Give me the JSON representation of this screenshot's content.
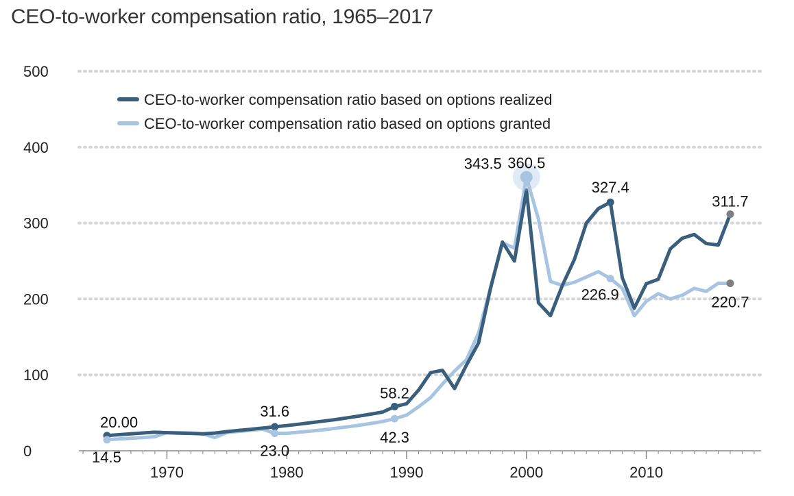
{
  "title": "CEO-to-worker compensation ratio, 1965–2017",
  "chart_data": {
    "type": "line",
    "xlim": [
      1962,
      2020
    ],
    "ylim": [
      0,
      500
    ],
    "yticks": [
      0,
      100,
      200,
      300,
      400,
      500
    ],
    "xticks": [
      1970,
      1980,
      1990,
      2000,
      2010
    ],
    "grid": "horizontal dotted",
    "legend_placement": "top-left",
    "series": [
      {
        "name": "CEO-to-worker compensation ratio based on options realized",
        "color": "#3a5f7d",
        "points": [
          [
            1965,
            20.0
          ],
          [
            1966,
            21.2
          ],
          [
            1967,
            22.4
          ],
          [
            1968,
            23.5
          ],
          [
            1969,
            24.5
          ],
          [
            1970,
            23.8
          ],
          [
            1971,
            23.3
          ],
          [
            1972,
            22.9
          ],
          [
            1973,
            22.3
          ],
          [
            1974,
            23.4
          ],
          [
            1975,
            25.3
          ],
          [
            1976,
            26.8
          ],
          [
            1977,
            28.3
          ],
          [
            1978,
            30.0
          ],
          [
            1979,
            31.6
          ],
          [
            1980,
            33.2
          ],
          [
            1981,
            35.0
          ],
          [
            1982,
            37.0
          ],
          [
            1983,
            39.0
          ],
          [
            1984,
            41.0
          ],
          [
            1985,
            43.3
          ],
          [
            1986,
            45.7
          ],
          [
            1987,
            48.3
          ],
          [
            1988,
            51.0
          ],
          [
            1989,
            58.2
          ],
          [
            1990,
            62.0
          ],
          [
            1991,
            80.0
          ],
          [
            1992,
            103.0
          ],
          [
            1993,
            106.0
          ],
          [
            1994,
            82.0
          ],
          [
            1995,
            113.0
          ],
          [
            1996,
            142.0
          ],
          [
            1997,
            214.0
          ],
          [
            1998,
            275.0
          ],
          [
            1999,
            250.0
          ],
          [
            2000,
            343.5
          ],
          [
            2001,
            195.0
          ],
          [
            2002,
            178.0
          ],
          [
            2003,
            218.0
          ],
          [
            2004,
            252.0
          ],
          [
            2005,
            300.0
          ],
          [
            2006,
            319.0
          ],
          [
            2007,
            327.4
          ],
          [
            2008,
            228.0
          ],
          [
            2009,
            188.0
          ],
          [
            2010,
            220.0
          ],
          [
            2011,
            226.0
          ],
          [
            2012,
            266.0
          ],
          [
            2013,
            280.0
          ],
          [
            2014,
            285.0
          ],
          [
            2015,
            273.0
          ],
          [
            2016,
            271.0
          ],
          [
            2017,
            311.7
          ]
        ]
      },
      {
        "name": "CEO-to-worker compensation ratio based on options granted",
        "color": "#a7c5e2",
        "points": [
          [
            1965,
            14.5
          ],
          [
            1966,
            15.5
          ],
          [
            1967,
            16.5
          ],
          [
            1968,
            17.5
          ],
          [
            1969,
            18.5
          ],
          [
            1970,
            24.0
          ],
          [
            1971,
            24.0
          ],
          [
            1972,
            23.5
          ],
          [
            1973,
            22.5
          ],
          [
            1974,
            17.5
          ],
          [
            1975,
            24.0
          ],
          [
            1976,
            25.5
          ],
          [
            1977,
            27.0
          ],
          [
            1978,
            28.5
          ],
          [
            1979,
            23.0
          ],
          [
            1980,
            23.0
          ],
          [
            1981,
            24.5
          ],
          [
            1982,
            26.0
          ],
          [
            1983,
            27.5
          ],
          [
            1984,
            29.5
          ],
          [
            1985,
            31.5
          ],
          [
            1986,
            33.5
          ],
          [
            1987,
            36.0
          ],
          [
            1988,
            38.5
          ],
          [
            1989,
            42.3
          ],
          [
            1990,
            47.0
          ],
          [
            1991,
            58.0
          ],
          [
            1992,
            70.0
          ],
          [
            1993,
            88.0
          ],
          [
            1994,
            105.0
          ],
          [
            1995,
            120.0
          ],
          [
            1996,
            155.0
          ],
          [
            1997,
            215.0
          ],
          [
            1998,
            274.0
          ],
          [
            1999,
            267.0
          ],
          [
            2000,
            360.5
          ],
          [
            2001,
            305.0
          ],
          [
            2002,
            223.0
          ],
          [
            2003,
            218.0
          ],
          [
            2004,
            222.0
          ],
          [
            2005,
            229.0
          ],
          [
            2006,
            236.0
          ],
          [
            2007,
            226.9
          ],
          [
            2008,
            214.0
          ],
          [
            2009,
            178.0
          ],
          [
            2010,
            197.0
          ],
          [
            2011,
            207.0
          ],
          [
            2012,
            200.0
          ],
          [
            2013,
            205.0
          ],
          [
            2014,
            214.0
          ],
          [
            2015,
            210.0
          ],
          [
            2016,
            220.7
          ],
          [
            2017,
            220.7
          ]
        ]
      }
    ],
    "annotations": [
      {
        "series": 0,
        "x": 1965,
        "y": 20.0,
        "label": "20.00"
      },
      {
        "series": 1,
        "x": 1965,
        "y": 14.5,
        "label": "14.5"
      },
      {
        "series": 0,
        "x": 1979,
        "y": 31.6,
        "label": "31.6"
      },
      {
        "series": 1,
        "x": 1979,
        "y": 23.0,
        "label": "23.0"
      },
      {
        "series": 0,
        "x": 1989,
        "y": 58.2,
        "label": "58.2"
      },
      {
        "series": 1,
        "x": 1989,
        "y": 42.3,
        "label": "42.3"
      },
      {
        "series": 0,
        "x": 2000,
        "y": 343.5,
        "label": "343.5"
      },
      {
        "series": 1,
        "x": 2000,
        "y": 360.5,
        "label": "360.5"
      },
      {
        "series": 0,
        "x": 2007,
        "y": 327.4,
        "label": "327.4"
      },
      {
        "series": 1,
        "x": 2007,
        "y": 226.9,
        "label": "226.9"
      },
      {
        "series": 0,
        "x": 2017,
        "y": 311.7,
        "label": "311.7"
      },
      {
        "series": 1,
        "x": 2017,
        "y": 220.7,
        "label": "220.7"
      }
    ]
  }
}
